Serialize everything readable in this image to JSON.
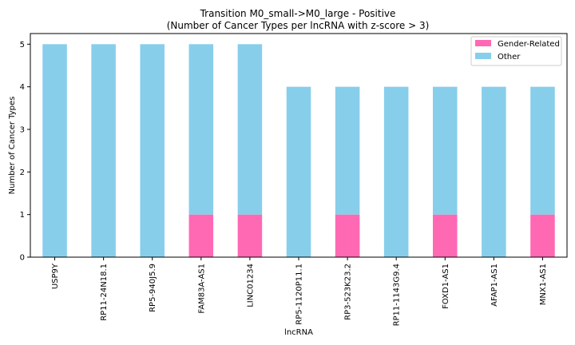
{
  "chart_data": {
    "type": "bar",
    "stacked": true,
    "title": "Transition M0_small->M0_large - Positive",
    "subtitle": "(Number of Cancer Types per lncRNA with z-score > 3)",
    "xlabel": "lncRNA",
    "ylabel": "Number of Cancer Types",
    "ylim": [
      0,
      5.25
    ],
    "yticks": [
      0,
      1,
      2,
      3,
      4,
      5
    ],
    "grid": false,
    "legend_position": "top-right",
    "categories": [
      "USP9Y",
      "RP11-24N18.1",
      "RP5-940J5.9",
      "FAM83A-AS1",
      "LINC01234",
      "RP5-1120P11.1",
      "RP3-523K23.2",
      "RP11-1143G9.4",
      "FOXD1-AS1",
      "AFAP1-AS1",
      "MNX1-AS1"
    ],
    "series": [
      {
        "name": "Gender-Related",
        "color": "#ff69b4",
        "values": [
          0,
          0,
          0,
          1,
          1,
          0,
          1,
          0,
          1,
          0,
          1
        ]
      },
      {
        "name": "Other",
        "color": "#87ceeb",
        "values": [
          5,
          5,
          5,
          4,
          4,
          4,
          3,
          4,
          3,
          4,
          3
        ]
      }
    ]
  }
}
